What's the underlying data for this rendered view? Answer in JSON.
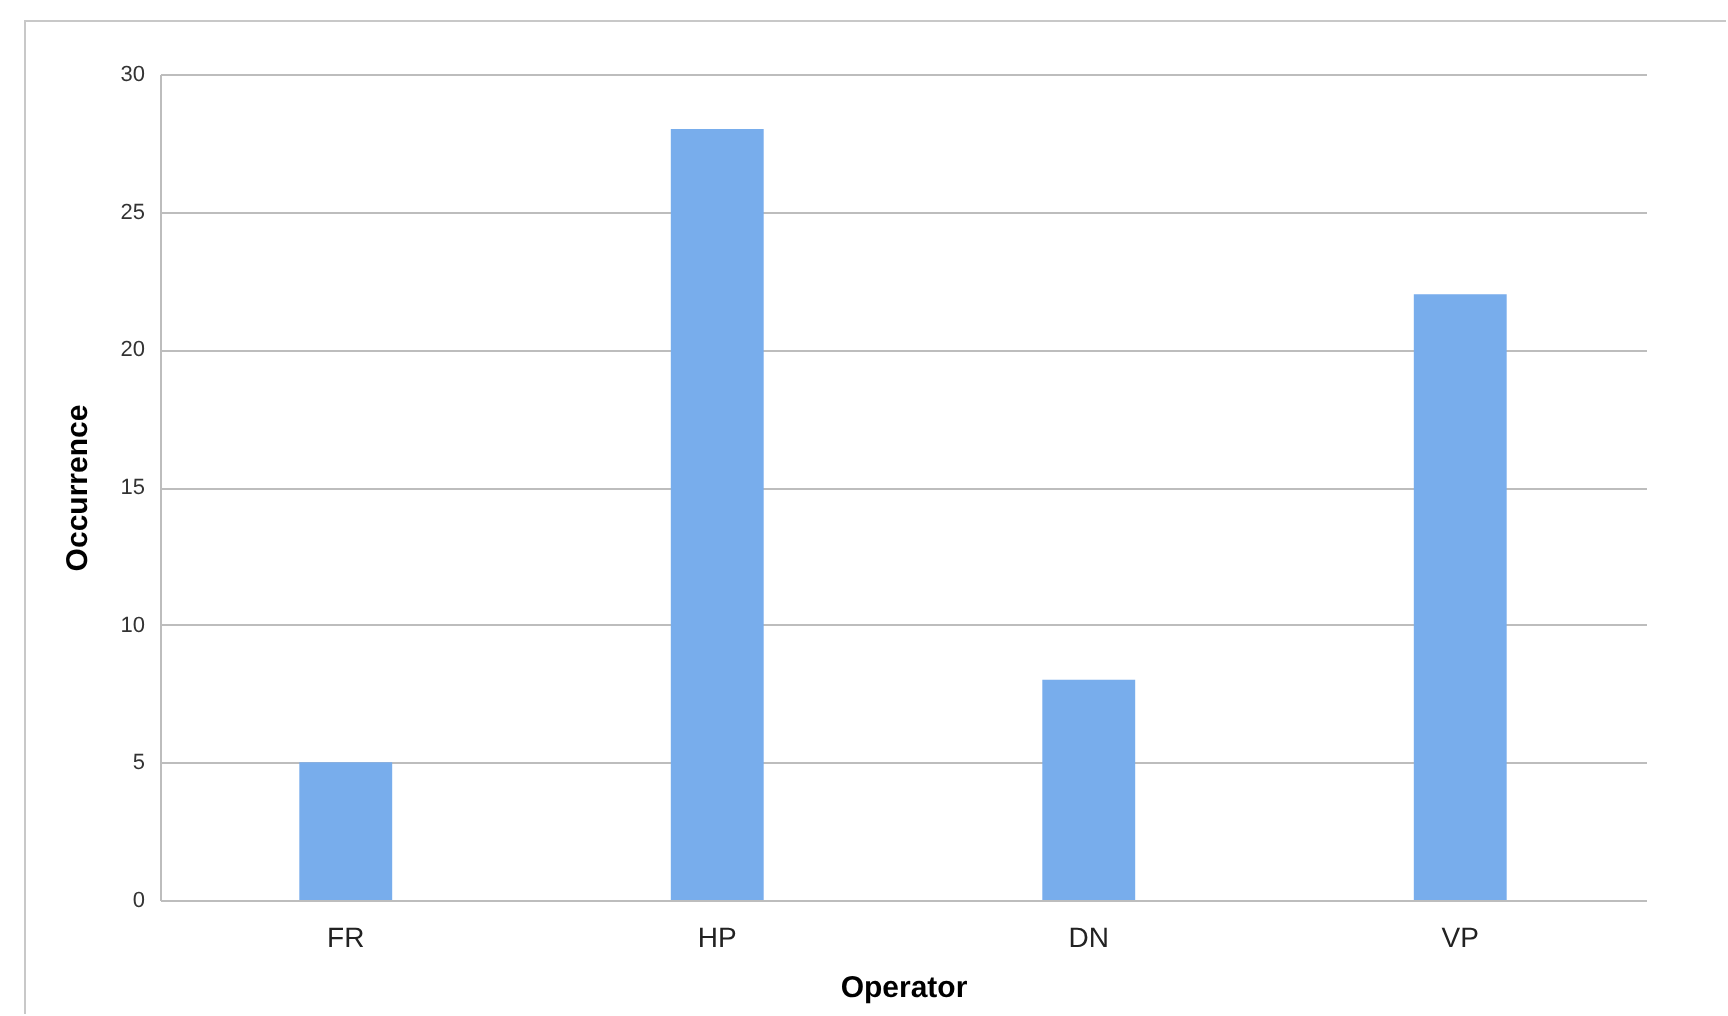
{
  "chart_data": {
    "type": "bar",
    "xlabel": "Operator",
    "ylabel": "Occurrence",
    "categories": [
      "FR",
      "HP",
      "DN",
      "VP"
    ],
    "series": [
      {
        "color": "#78adec",
        "values": [
          5,
          28,
          8,
          22
        ]
      }
    ],
    "ylim": [
      0,
      30
    ],
    "yticks": [
      0,
      5,
      10,
      15,
      20,
      25,
      30
    ],
    "grid": "y",
    "legend": false
  }
}
